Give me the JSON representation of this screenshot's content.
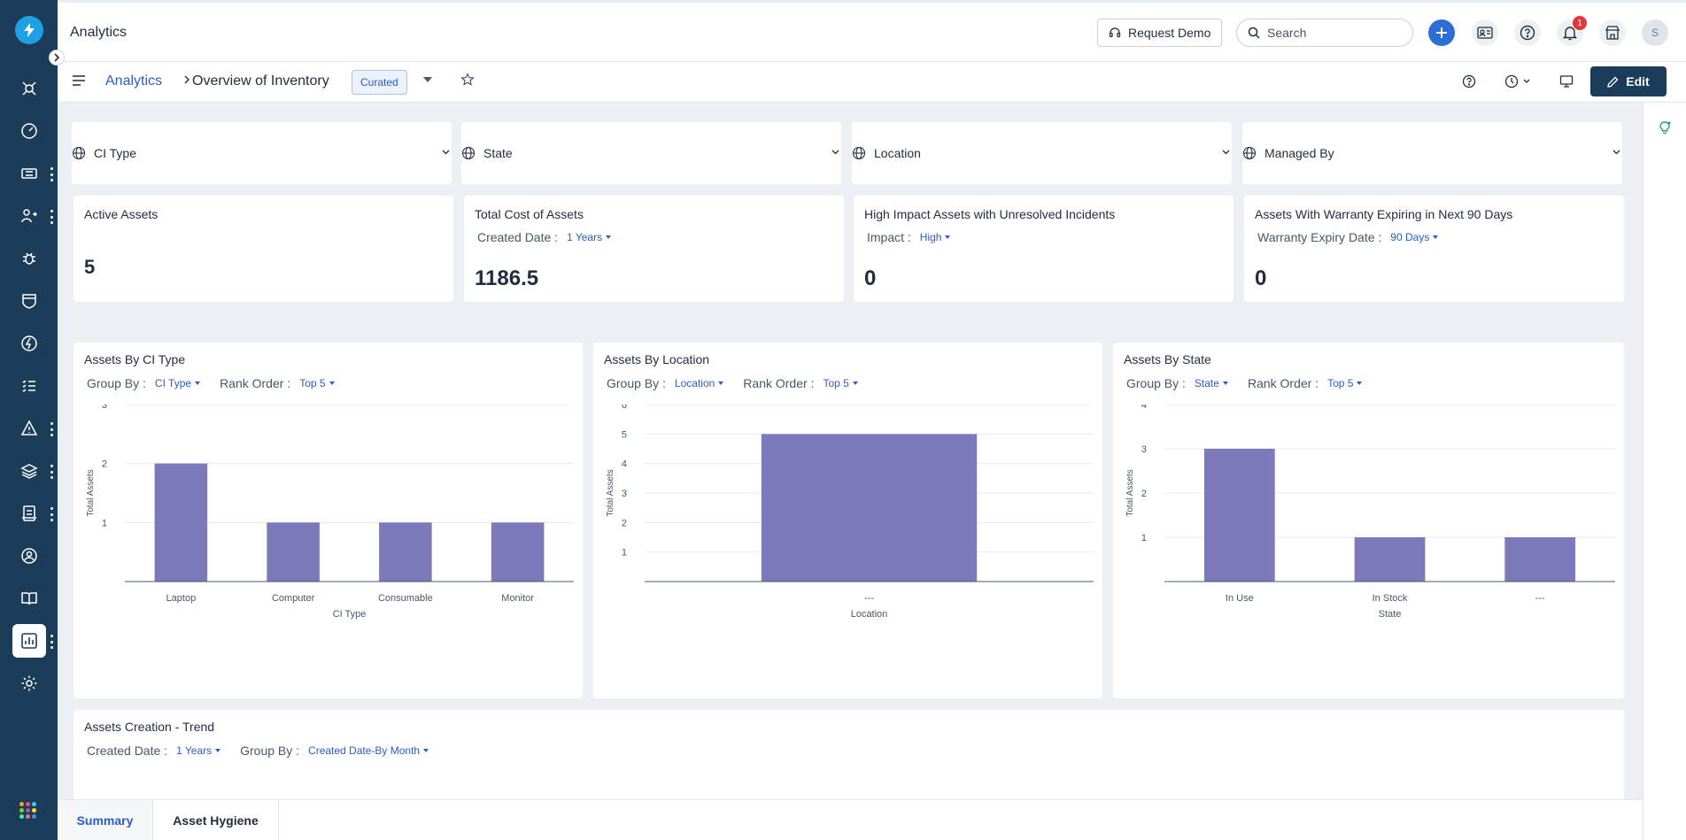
{
  "header": {
    "app_title": "Analytics",
    "request_demo": "Request Demo",
    "search_placeholder": "Search",
    "notification_count": "1",
    "avatar_initial": "S"
  },
  "subheader": {
    "breadcrumb_root": "Analytics",
    "breadcrumb_current": "Overview of Inventory",
    "badge": "Curated",
    "edit_label": "Edit"
  },
  "sidebar": {
    "icons": [
      "logo-icon",
      "problems-icon",
      "dashboard-icon",
      "tickets-icon",
      "changes-icon",
      "bugs-icon",
      "releases-icon",
      "automation-icon",
      "tasks-icon",
      "alerts-icon",
      "assets-icon",
      "reports-icon",
      "team-icon",
      "knowledge-icon",
      "analytics-icon",
      "settings-icon",
      "apps-icon"
    ]
  },
  "filters": [
    {
      "label": "CI Type"
    },
    {
      "label": "State"
    },
    {
      "label": "Location"
    },
    {
      "label": "Managed By"
    }
  ],
  "kpis": [
    {
      "title": "Active Assets",
      "value": "5"
    },
    {
      "title": "Total Cost of Assets",
      "filter_label": "Created Date :",
      "filter_value": "1 Years",
      "value": "1186.5"
    },
    {
      "title": "High Impact Assets with Unresolved Incidents",
      "filter_label": "Impact :",
      "filter_value": "High",
      "value": "0"
    },
    {
      "title": "Assets With Warranty Expiring in Next 90 Days",
      "filter_label": "Warranty Expiry Date :",
      "filter_value": "90 Days",
      "value": "0"
    }
  ],
  "charts": [
    {
      "title": "Assets By CI Type",
      "group_by_label": "Group By :",
      "group_by": "CI Type",
      "rank_label": "Rank Order :",
      "rank": "Top 5"
    },
    {
      "title": "Assets By Location",
      "group_by_label": "Group By :",
      "group_by": "Location",
      "rank_label": "Rank Order :",
      "rank": "Top 5"
    },
    {
      "title": "Assets By State",
      "group_by_label": "Group By :",
      "group_by": "State",
      "rank_label": "Rank Order :",
      "rank": "Top 5"
    }
  ],
  "trend": {
    "title": "Assets Creation - Trend",
    "created_label": "Created Date :",
    "created_value": "1 Years",
    "group_by_label": "Group By :",
    "group_by": "Created Date-By Month"
  },
  "tabs": [
    {
      "label": "Summary",
      "active": true
    },
    {
      "label": "Asset Hygiene",
      "active": false
    }
  ],
  "colors": {
    "sidebar": "#1b3d5a",
    "accent": "#2c5cc5",
    "bar": "#7d7aba",
    "logo": "#1fa0e6",
    "plus_button": "#2c6ed5",
    "badge": "#e43538"
  },
  "chart_data": [
    {
      "type": "bar",
      "title": "Assets By CI Type",
      "categories": [
        "Laptop",
        "Computer",
        "Consumable",
        "Monitor"
      ],
      "values": [
        2,
        1,
        1,
        1
      ],
      "xlabel": "CI Type",
      "ylabel": "Total Assets",
      "ylim": [
        0,
        3
      ],
      "yticks": [
        1,
        2,
        3
      ],
      "grid": true
    },
    {
      "type": "bar",
      "title": "Assets By Location",
      "categories": [
        "---"
      ],
      "values": [
        5
      ],
      "xlabel": "Location",
      "ylabel": "Total Assets",
      "ylim": [
        0,
        6
      ],
      "yticks": [
        1,
        2,
        3,
        4,
        5,
        6
      ],
      "grid": true
    },
    {
      "type": "bar",
      "title": "Assets By State",
      "categories": [
        "In Use",
        "In Stock",
        "---"
      ],
      "values": [
        3,
        1,
        1
      ],
      "xlabel": "State",
      "ylabel": "Total Assets",
      "ylim": [
        0,
        4
      ],
      "yticks": [
        1,
        2,
        3,
        4
      ],
      "grid": true
    }
  ]
}
